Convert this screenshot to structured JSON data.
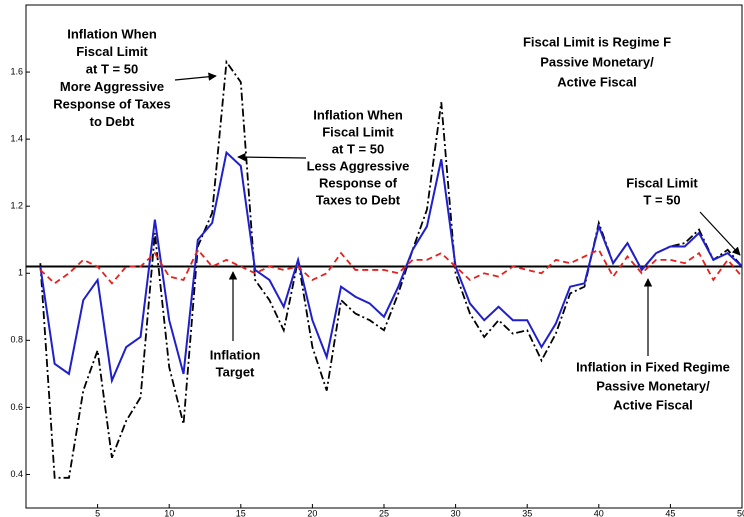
{
  "chart_data": {
    "type": "line",
    "x": [
      1,
      2,
      3,
      4,
      5,
      6,
      7,
      8,
      9,
      10,
      11,
      12,
      13,
      14,
      15,
      16,
      17,
      18,
      19,
      20,
      21,
      22,
      23,
      24,
      25,
      26,
      27,
      28,
      29,
      30,
      31,
      32,
      33,
      34,
      35,
      36,
      37,
      38,
      39,
      40,
      41,
      42,
      43,
      44,
      45,
      46,
      47,
      48,
      49,
      50
    ],
    "series": [
      {
        "color": "#000000",
        "style": "dashdot",
        "values": [
          1.03,
          0.39,
          0.39,
          0.65,
          0.77,
          0.45,
          0.56,
          0.63,
          1.12,
          0.72,
          0.55,
          1.08,
          1.18,
          1.63,
          1.57,
          0.98,
          0.92,
          0.83,
          1.04,
          0.78,
          0.65,
          0.92,
          0.88,
          0.86,
          0.83,
          0.94,
          1.07,
          1.19,
          1.51,
          1.0,
          0.88,
          0.81,
          0.86,
          0.82,
          0.83,
          0.74,
          0.82,
          0.94,
          0.96,
          1.15,
          1.03,
          1.09,
          1.01,
          1.06,
          1.08,
          1.09,
          1.13,
          1.04,
          1.07,
          1.02
        ]
      },
      {
        "color": "#1f1fcc",
        "style": "solid",
        "values": [
          1.02,
          0.73,
          0.7,
          0.92,
          0.98,
          0.68,
          0.78,
          0.81,
          1.16,
          0.86,
          0.7,
          1.1,
          1.15,
          1.36,
          1.32,
          1.01,
          0.98,
          0.9,
          1.04,
          0.86,
          0.75,
          0.96,
          0.93,
          0.91,
          0.87,
          0.96,
          1.07,
          1.14,
          1.34,
          1.02,
          0.91,
          0.86,
          0.9,
          0.86,
          0.86,
          0.78,
          0.85,
          0.96,
          0.97,
          1.14,
          1.03,
          1.09,
          1.01,
          1.06,
          1.08,
          1.08,
          1.12,
          1.04,
          1.06,
          1.02
        ]
      },
      {
        "color": "#e8201c",
        "style": "dashed",
        "values": [
          1.01,
          0.97,
          1.0,
          1.04,
          1.02,
          0.97,
          1.02,
          1.02,
          1.06,
          0.99,
          0.98,
          1.07,
          1.02,
          1.04,
          1.02,
          1.0,
          1.02,
          1.01,
          1.02,
          0.98,
          1.0,
          1.06,
          1.01,
          1.01,
          1.01,
          1.0,
          1.04,
          1.04,
          1.06,
          1.02,
          0.98,
          1.0,
          0.99,
          1.02,
          1.01,
          1.0,
          1.04,
          1.03,
          1.05,
          1.07,
          0.99,
          1.05,
          1.0,
          1.04,
          1.04,
          1.03,
          1.06,
          0.98,
          1.04,
          0.99
        ]
      }
    ],
    "target": 1.02,
    "xlim": [
      0,
      50
    ],
    "ylim": [
      0.3,
      1.8
    ],
    "xticks": [
      5,
      10,
      15,
      20,
      25,
      30,
      35,
      40,
      45,
      50
    ],
    "yticks": [
      0.4,
      0.6,
      0.8,
      1,
      1.2,
      1.4,
      1.6
    ],
    "annotations": [
      [
        "Inflation When",
        "Fiscal Limit",
        "at T = 50",
        "More Aggressive",
        "Response of Taxes",
        "to Debt"
      ],
      [
        "Fiscal Limit is Regime F",
        "Passive Monetary/",
        "Active Fiscal"
      ],
      [
        "Inflation When",
        "Fiscal Limit",
        "at T = 50",
        "Less Aggressive",
        "Response of",
        "Taxes to Debt"
      ],
      [
        "Fiscal Limit",
        "T = 50"
      ],
      [
        "Inflation",
        "Target"
      ],
      [
        "Inflation in Fixed Regime",
        "Passive Monetary/",
        "Active Fiscal"
      ]
    ]
  }
}
